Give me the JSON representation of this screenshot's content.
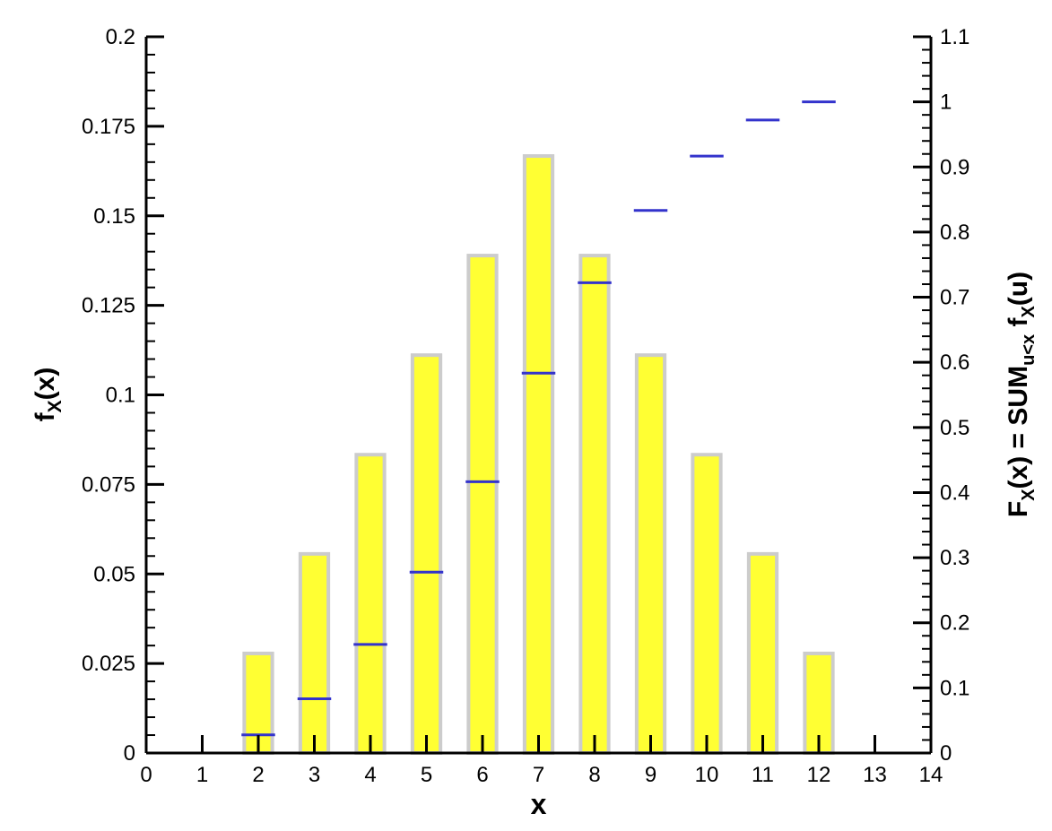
{
  "chart_data": {
    "type": "bar",
    "xlabel": "x",
    "ylabel_left": {
      "main": "f",
      "sub": "X",
      "tail": "(x)"
    },
    "ylabel_right": {
      "parts": [
        {
          "t": "F",
          "sub": false
        },
        {
          "t": "X",
          "sub": true
        },
        {
          "t": "(x) = SUM",
          "sub": false
        },
        {
          "t": "u<x",
          "sub": true
        },
        {
          "t": " f",
          "sub": false
        },
        {
          "t": "X",
          "sub": true
        },
        {
          "t": "(u)",
          "sub": false
        }
      ]
    },
    "x_ticks": [
      "0",
      "1",
      "2",
      "3",
      "4",
      "5",
      "6",
      "7",
      "8",
      "9",
      "10",
      "11",
      "12",
      "13",
      "14"
    ],
    "xlim": [
      0,
      14
    ],
    "y_left_ticks": [
      "0",
      "0.025",
      "0.05",
      "0.075",
      "0.1",
      "0.125",
      "0.15",
      "0.175",
      "0.2"
    ],
    "y_left_lim": [
      0,
      0.2
    ],
    "y_right_ticks": [
      "0",
      "0.1",
      "0.2",
      "0.3",
      "0.4",
      "0.5",
      "0.6",
      "0.7",
      "0.8",
      "0.9",
      "1",
      "1.1"
    ],
    "y_right_lim": [
      0,
      1.1
    ],
    "grid": false,
    "bars": {
      "x": [
        2,
        3,
        4,
        5,
        6,
        7,
        8,
        9,
        10,
        11,
        12
      ],
      "values": [
        0.0278,
        0.0556,
        0.0833,
        0.1111,
        0.1389,
        0.1667,
        0.1389,
        0.1111,
        0.0833,
        0.0556,
        0.0278
      ],
      "color": "#ffff33",
      "edge_color": "#cccccc"
    },
    "cdf_steps": {
      "x": [
        2,
        3,
        4,
        5,
        6,
        7,
        8,
        9,
        10,
        11,
        12
      ],
      "values": [
        0.0278,
        0.0833,
        0.1667,
        0.2778,
        0.4167,
        0.5833,
        0.7222,
        0.8333,
        0.9167,
        0.9722,
        1.0
      ],
      "color": "#3333cc"
    }
  }
}
